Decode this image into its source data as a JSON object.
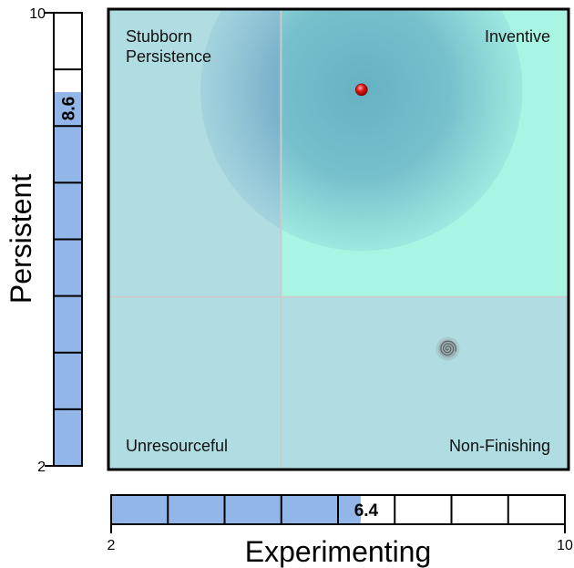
{
  "chart_data": {
    "type": "scatter",
    "quadrant_labels": {
      "top_left": [
        "Stubborn",
        "Persistence"
      ],
      "top_right": "Inventive",
      "bottom_left": "Unresourceful",
      "bottom_right": "Non-Finishing"
    },
    "x_axis": {
      "label": "Experimenting",
      "range": [
        2,
        10
      ],
      "tick_labels": [
        "2",
        "10"
      ],
      "value": 6.4,
      "value_label": "6.4"
    },
    "y_axis": {
      "label": "Persistent",
      "range": [
        2,
        10
      ],
      "tick_labels": [
        "2",
        "10"
      ],
      "value": 8.6,
      "value_label": "8.6"
    },
    "points": [
      {
        "x": 6.4,
        "y": 8.6,
        "marker": "red-dot"
      },
      {
        "x": 7.9,
        "y": 4.1,
        "marker": "grey-spiral"
      }
    ],
    "threshold": {
      "x": 5,
      "y": 5
    },
    "highlight_radius": 2.8
  },
  "colors": {
    "quadrant": "#b0dde2",
    "highlight_quadrant": "#a8f5e4",
    "bar_fill": "#93b6e8",
    "bar_empty": "#ffffff",
    "divider": "#c8cccc",
    "marker": "#e01818",
    "glow": "#3a7fb0"
  }
}
